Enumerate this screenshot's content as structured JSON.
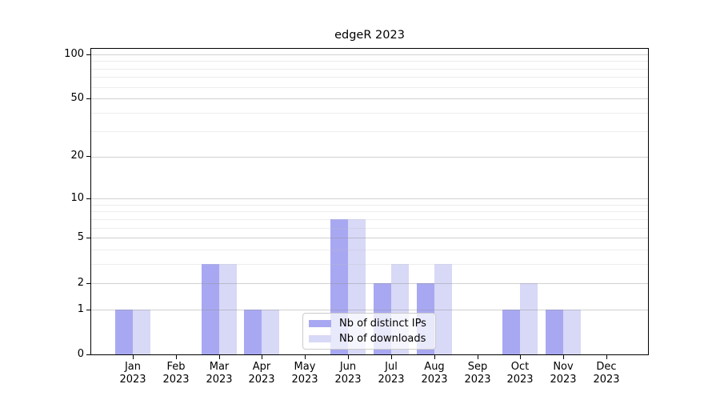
{
  "chart_data": {
    "type": "bar",
    "title": "edgeR 2023",
    "categories": [
      "Jan",
      "Feb",
      "Mar",
      "Apr",
      "May",
      "Jun",
      "Jul",
      "Aug",
      "Sep",
      "Oct",
      "Nov",
      "Dec"
    ],
    "x_sublabel": "2023",
    "series": [
      {
        "name": "Nb of distinct IPs",
        "color": "#a8a8f2",
        "values": [
          1,
          0,
          3,
          1,
          0,
          7,
          2,
          2,
          0,
          1,
          1,
          0
        ]
      },
      {
        "name": "Nb of downloads",
        "color": "#d8d8f7",
        "values": [
          1,
          0,
          3,
          1,
          0,
          7,
          3,
          3,
          0,
          2,
          1,
          0
        ]
      }
    ],
    "yscale": "log1p",
    "ylim": [
      0,
      112
    ],
    "ytick_values": [
      0,
      1,
      2,
      5,
      10,
      20,
      50,
      100
    ],
    "minor_grid_values": [
      3,
      4,
      6,
      7,
      8,
      9,
      30,
      40,
      60,
      70,
      80,
      90
    ],
    "grid": true,
    "legend_position": "lower center",
    "background_color": "#ffffff",
    "axis_color": "#000000",
    "major_grid_color": "#cfcfcf",
    "minor_grid_color": "#f0f0f0"
  }
}
